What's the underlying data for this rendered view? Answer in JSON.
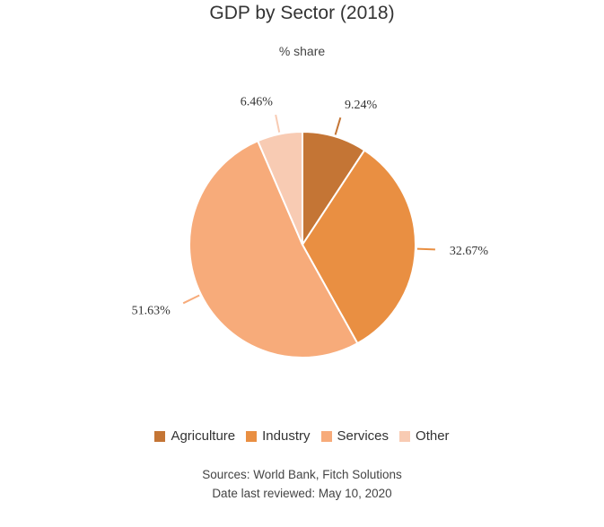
{
  "chart_data": {
    "type": "pie",
    "title": "GDP by Sector (2018)",
    "subtitle": "% share",
    "categories": [
      "Agriculture",
      "Industry",
      "Services",
      "Other"
    ],
    "values": [
      9.24,
      32.67,
      51.63,
      6.46
    ],
    "labels": [
      "9.24%",
      "32.67%",
      "51.63%",
      "6.46%"
    ],
    "colors": [
      "#c47535",
      "#e98f42",
      "#f7ab7a",
      "#f8cbb3"
    ],
    "legend_position": "bottom",
    "start_angle_deg": 0,
    "direction": "clockwise"
  },
  "footer": {
    "sources": "Sources: World Bank, Fitch Solutions",
    "reviewed": "Date last reviewed: May 10, 2020"
  }
}
